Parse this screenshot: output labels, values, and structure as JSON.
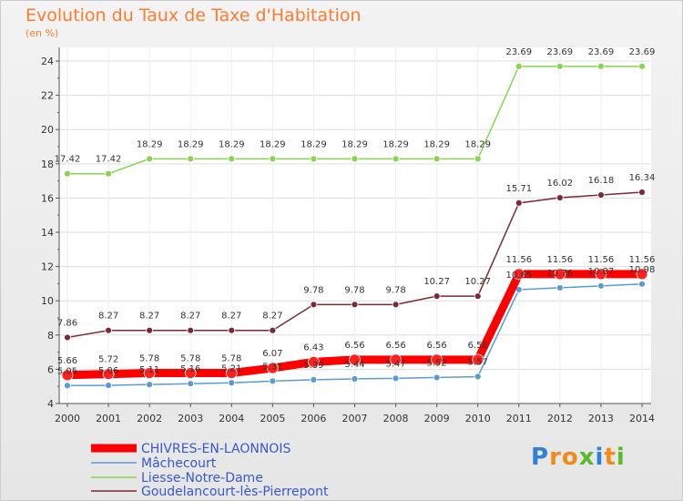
{
  "header": {
    "title": "Evolution du Taux de Taxe d'Habitation",
    "unit": "(en %)"
  },
  "logo": {
    "letters": [
      "P",
      "r",
      "o",
      "x",
      "i",
      "t",
      "i"
    ],
    "colors": [
      "#2e82d6",
      "#f08a1a",
      "#f08a1a",
      "#5cb82e",
      "#2e82d6",
      "#f08a1a",
      "#5cb82e"
    ]
  },
  "chart_data": {
    "type": "line",
    "title": "Evolution du Taux de Taxe d'Habitation",
    "ylabel": "(en %)",
    "x": [
      "2000",
      "2001",
      "2002",
      "2003",
      "2004",
      "2005",
      "2006",
      "2007",
      "2008",
      "2009",
      "2010",
      "2011",
      "2012",
      "2013",
      "2014"
    ],
    "yticks": [
      4,
      6,
      8,
      10,
      12,
      14,
      16,
      18,
      20,
      22,
      24
    ],
    "ylim": [
      4,
      24.8
    ],
    "grid": true,
    "legend_position": "bottom-left",
    "series": [
      {
        "name": "CHIVRES-EN-LAONNOIS",
        "color": "#ff0000",
        "values": [
          5.66,
          5.72,
          5.78,
          5.78,
          5.78,
          6.07,
          6.43,
          6.56,
          6.56,
          6.56,
          6.56,
          11.56,
          11.56,
          11.56,
          11.56
        ],
        "labels": [
          "5.66",
          "5.72",
          "5.78",
          "5.78",
          "5.78",
          "6.07",
          "6.43",
          "6.56",
          "6.56",
          "6.56",
          "6.56",
          "11.56",
          "11.56",
          "11.56",
          "11.56"
        ]
      },
      {
        "name": "Mâchecourt",
        "color": "#5b9bd5",
        "values": [
          5.05,
          5.06,
          5.11,
          5.16,
          5.21,
          5.31,
          5.39,
          5.44,
          5.47,
          5.52,
          5.57,
          10.65,
          10.76,
          10.87,
          10.98
        ],
        "labels": [
          "5.05",
          "5.06",
          "5.11",
          "5.16",
          "5.21",
          "5.31",
          "5.39",
          "5.44",
          "5.47",
          "5.52",
          "5.57",
          "10.65",
          "10.76",
          "10.87",
          "10.98"
        ]
      },
      {
        "name": "Liesse-Notre-Dame",
        "color": "#86d64e",
        "values": [
          17.42,
          17.42,
          18.29,
          18.29,
          18.29,
          18.29,
          18.29,
          18.29,
          18.29,
          18.29,
          18.29,
          23.69,
          23.69,
          23.69,
          23.69
        ],
        "labels": [
          "17.42",
          "17.42",
          "18.29",
          "18.29",
          "18.29",
          "18.29",
          "18.29",
          "18.29",
          "18.29",
          "18.29",
          "18.29",
          "23.69",
          "23.69",
          "23.69",
          "23.69"
        ]
      },
      {
        "name": "Goudelancourt-lès-Pierrepont",
        "color": "#7a2a35",
        "values": [
          7.86,
          8.27,
          8.27,
          8.27,
          8.27,
          8.27,
          9.78,
          9.78,
          9.78,
          10.27,
          10.27,
          15.71,
          16.02,
          16.18,
          16.34
        ],
        "labels": [
          "7.86",
          "8.27",
          "8.27",
          "8.27",
          "8.27",
          "8.27",
          "9.78",
          "9.78",
          "9.78",
          "10.27",
          "10.27",
          "15.71",
          "16.02",
          "16.18",
          "16.34"
        ]
      }
    ]
  }
}
